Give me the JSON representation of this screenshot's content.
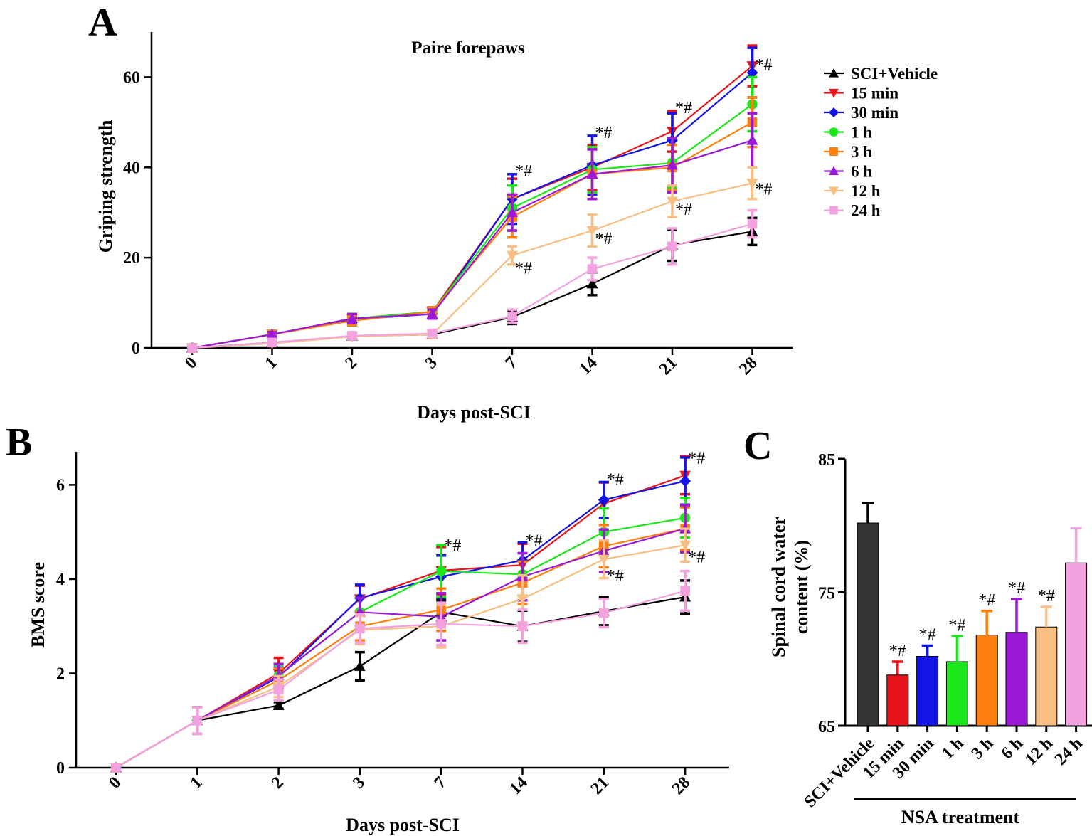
{
  "figure": {
    "panels": [
      "A",
      "B",
      "C"
    ]
  },
  "legend": {
    "entries": [
      {
        "name": "SCI+Vehicle",
        "color": "#000000",
        "marker": "triangle-up"
      },
      {
        "name": "15 min",
        "color": "#e8141b",
        "marker": "triangle-down"
      },
      {
        "name": "30 min",
        "color": "#1414e6",
        "marker": "diamond"
      },
      {
        "name": "1 h",
        "color": "#1ae61a",
        "marker": "circle"
      },
      {
        "name": "3 h",
        "color": "#ff7f0e",
        "marker": "square"
      },
      {
        "name": "6 h",
        "color": "#9b19d6",
        "marker": "triangle-up"
      },
      {
        "name": "12 h",
        "color": "#f7bf83",
        "marker": "triangle-down"
      },
      {
        "name": "24 h",
        "color": "#f2a3df",
        "marker": "square"
      }
    ]
  },
  "chart_data": [
    {
      "panel": "A",
      "type": "line",
      "title": "Paire forepaws",
      "xlabel": "Days post-SCI",
      "ylabel": "Griping strength",
      "categories": [
        "0",
        "1",
        "2",
        "3",
        "7",
        "14",
        "21",
        "28"
      ],
      "ylim": [
        0,
        70
      ],
      "yticks": [
        0,
        20,
        40,
        60
      ],
      "series": [
        {
          "name": "SCI+Vehicle",
          "values": [
            0,
            1.2,
            2.6,
            3.0,
            6.8,
            14.2,
            22.8,
            25.8
          ],
          "errors": [
            0,
            0.4,
            0.6,
            0.8,
            1.5,
            2.5,
            3.5,
            3.0
          ]
        },
        {
          "name": "15 min",
          "values": [
            0,
            3.0,
            6.5,
            8.0,
            33.0,
            40.0,
            48.0,
            62.5
          ],
          "errors": [
            0,
            0.5,
            1.0,
            1.0,
            4.5,
            5.0,
            4.5,
            4.5
          ]
        },
        {
          "name": "30 min",
          "values": [
            0,
            3.0,
            6.3,
            7.5,
            33.0,
            40.5,
            46.0,
            61.0
          ],
          "errors": [
            0,
            0.5,
            1.0,
            1.0,
            5.5,
            6.5,
            6.0,
            5.5
          ]
        },
        {
          "name": "1 h",
          "values": [
            0,
            3.0,
            6.5,
            8.0,
            31.0,
            39.5,
            41.0,
            54.0
          ],
          "errors": [
            0,
            0.5,
            1.0,
            1.0,
            5.0,
            5.0,
            5.5,
            6.0
          ]
        },
        {
          "name": "3 h",
          "values": [
            0,
            3.0,
            6.0,
            8.0,
            29.0,
            38.5,
            40.0,
            50.0
          ],
          "errors": [
            0,
            0.5,
            1.0,
            1.0,
            4.5,
            5.5,
            5.0,
            5.5
          ]
        },
        {
          "name": "6 h",
          "values": [
            0,
            3.0,
            6.5,
            7.5,
            30.0,
            38.5,
            40.5,
            46.0
          ],
          "errors": [
            0,
            0.5,
            1.0,
            1.0,
            4.0,
            5.5,
            6.0,
            6.0
          ]
        },
        {
          "name": "12 h",
          "values": [
            0,
            1.0,
            2.5,
            3.0,
            20.5,
            26.0,
            32.5,
            36.5
          ],
          "errors": [
            0,
            0.4,
            0.6,
            0.8,
            2.0,
            3.5,
            3.5,
            3.5
          ]
        },
        {
          "name": "24 h",
          "values": [
            0,
            1.2,
            2.7,
            3.2,
            7.0,
            17.5,
            22.5,
            27.5
          ],
          "errors": [
            0,
            0.4,
            0.6,
            0.8,
            1.5,
            2.5,
            4.0,
            3.0
          ]
        }
      ],
      "annotations": [
        {
          "text": "*#",
          "category": "7",
          "y": 38.0
        },
        {
          "text": "*#",
          "category": "7",
          "y": 16.5
        },
        {
          "text": "*#",
          "category": "14",
          "y": 46.5
        },
        {
          "text": "*#",
          "category": "14",
          "y": 23.0
        },
        {
          "text": "*#",
          "category": "21",
          "y": 52.0
        },
        {
          "text": "*#",
          "category": "21",
          "y": 29.5
        },
        {
          "text": "*#",
          "category": "28",
          "y": 61.5
        },
        {
          "text": "*#",
          "category": "28",
          "y": 34.0
        }
      ]
    },
    {
      "panel": "B",
      "type": "line",
      "title": "",
      "xlabel": "Days post-SCI",
      "ylabel": "BMS score",
      "categories": [
        "0",
        "1",
        "2",
        "3",
        "7",
        "14",
        "21",
        "28"
      ],
      "ylim": [
        0,
        6.7
      ],
      "yticks": [
        0,
        2,
        4,
        6
      ],
      "series": [
        {
          "name": "SCI+Vehicle",
          "values": [
            0,
            1.0,
            1.32,
            2.15,
            3.3,
            3.0,
            3.32,
            3.62
          ],
          "errors": [
            0,
            0.28,
            0.07,
            0.3,
            0.25,
            0.33,
            0.3,
            0.35
          ]
        },
        {
          "name": "15 min",
          "values": [
            0,
            1.0,
            2.0,
            3.58,
            4.18,
            4.3,
            5.6,
            6.2
          ],
          "errors": [
            0,
            0.28,
            0.33,
            0.28,
            0.5,
            0.45,
            0.45,
            0.4
          ]
        },
        {
          "name": "30 min",
          "values": [
            0,
            1.0,
            1.92,
            3.6,
            4.05,
            4.4,
            5.68,
            6.08
          ],
          "errors": [
            0,
            0.28,
            0.22,
            0.28,
            0.45,
            0.38,
            0.38,
            0.5
          ]
        },
        {
          "name": "1 h",
          "values": [
            0,
            1.0,
            1.95,
            3.3,
            4.17,
            4.1,
            5.0,
            5.3
          ],
          "errors": [
            0,
            0.28,
            0.22,
            0.3,
            0.55,
            0.45,
            0.5,
            0.42
          ]
        },
        {
          "name": "3 h",
          "values": [
            0,
            1.0,
            1.85,
            3.0,
            3.35,
            3.92,
            4.7,
            5.07
          ],
          "errors": [
            0,
            0.28,
            0.25,
            0.3,
            0.45,
            0.45,
            0.45,
            0.45
          ]
        },
        {
          "name": "6 h",
          "values": [
            0,
            1.0,
            1.95,
            3.3,
            3.2,
            4.05,
            4.6,
            5.07
          ],
          "errors": [
            0,
            0.28,
            0.25,
            0.3,
            0.5,
            0.5,
            0.45,
            0.5
          ]
        },
        {
          "name": "12 h",
          "values": [
            0,
            1.0,
            1.72,
            2.92,
            3.0,
            3.58,
            4.42,
            4.72
          ],
          "errors": [
            0,
            0.28,
            0.22,
            0.3,
            0.45,
            0.5,
            0.4,
            0.35
          ]
        },
        {
          "name": "24 h",
          "values": [
            0,
            1.0,
            1.65,
            2.95,
            3.05,
            3.0,
            3.28,
            3.75
          ],
          "errors": [
            0,
            0.28,
            0.22,
            0.3,
            0.45,
            0.35,
            0.3,
            0.42
          ]
        }
      ],
      "annotations": [
        {
          "text": "*#",
          "category": "7",
          "y": 4.6
        },
        {
          "text": "*#",
          "category": "14",
          "y": 4.7
        },
        {
          "text": "*#",
          "category": "21",
          "y": 6.0
        },
        {
          "text": "*#",
          "category": "21",
          "y": 3.95
        },
        {
          "text": "*#",
          "category": "28",
          "y": 6.45
        },
        {
          "text": "*#",
          "category": "28",
          "y": 4.35
        }
      ]
    },
    {
      "panel": "C",
      "type": "bar",
      "title": "",
      "xlabel": "NSA treatment",
      "ylabel": "Spinal cord water content (%)",
      "ylabel_lines": [
        "Spinal cord water",
        "content (%)"
      ],
      "categories": [
        "SCI+Vehicle",
        "15 min",
        "30 min",
        "1 h",
        "3 h",
        "6 h",
        "12 h",
        "24 h"
      ],
      "values": [
        80.2,
        68.8,
        70.2,
        69.8,
        71.8,
        72.0,
        72.4,
        77.2
      ],
      "errors": [
        1.5,
        1.0,
        0.8,
        1.9,
        1.8,
        2.5,
        1.5,
        2.6
      ],
      "significance": [
        "",
        "*#",
        "*#",
        "*#",
        "*#",
        "*#",
        "*#",
        ""
      ],
      "ylim": [
        65,
        85
      ],
      "yticks": [
        65,
        75,
        85
      ]
    }
  ]
}
